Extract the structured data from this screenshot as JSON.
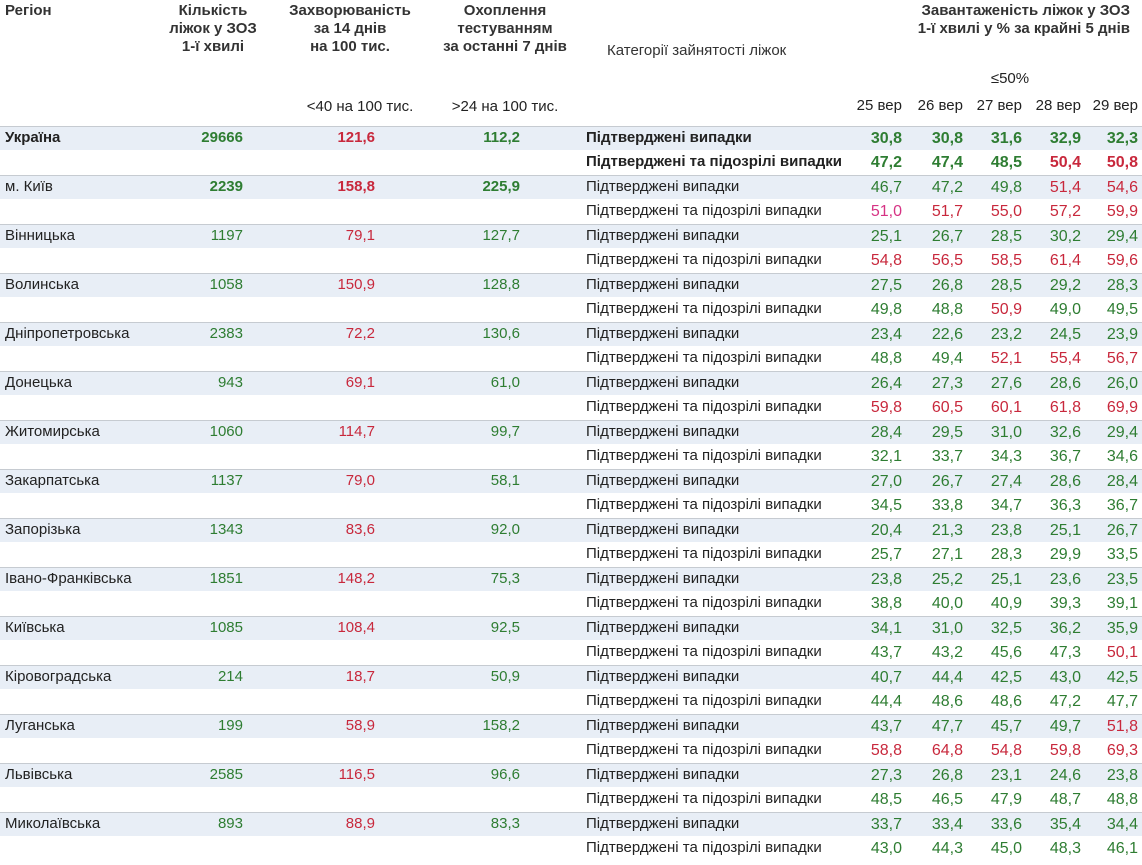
{
  "header": {
    "region": "Регіон",
    "beds": [
      "Кількість",
      "ліжок у ЗОЗ",
      "1-ї хвилі"
    ],
    "incidence": [
      "Захворюваність",
      "за 14 днів",
      "на 100 тис."
    ],
    "testing": [
      "Охоплення",
      "тестуванням",
      "за останні 7 днів"
    ],
    "category": "Категорії зайнятості ліжок",
    "occupancy": [
      "Завантаженість ліжок у ЗОЗ",
      "1-ї хвилі у % за крайні 5 днів"
    ],
    "threshold": "≤50%",
    "incidence_note": "<40 на 100 тис.",
    "testing_note": ">24 на 100 тис.",
    "dates": [
      "25 вер",
      "26 вер",
      "27 вер",
      "28 вер",
      "29 вер"
    ]
  },
  "palette": {
    "g": "#2e7d32",
    "r": "#c8283c",
    "p": "#d63384"
  },
  "column_colors": {
    "beds": "g",
    "incidence": "r",
    "testing": "g"
  },
  "rows": [
    {
      "region": "Україна",
      "emphasis": "all",
      "beds": "29666",
      "incidence": "121,6",
      "testing": "112,2",
      "confirmed": {
        "label": "Підтверджені випадки",
        "values": [
          "30,8",
          "30,8",
          "31,6",
          "32,9",
          "32,3"
        ],
        "colors": [
          "g",
          "g",
          "g",
          "g",
          "g"
        ]
      },
      "suspected": {
        "label": "Підтверджені та підозрілі випадки",
        "values": [
          "47,2",
          "47,4",
          "48,5",
          "50,4",
          "50,8"
        ],
        "colors": [
          "g",
          "g",
          "g",
          "r",
          "r"
        ]
      }
    },
    {
      "region": "м. Київ",
      "emphasis": "numbers",
      "beds": "2239",
      "incidence": "158,8",
      "testing": "225,9",
      "confirmed": {
        "label": "Підтверджені випадки",
        "values": [
          "46,7",
          "47,2",
          "49,8",
          "51,4",
          "54,6"
        ],
        "colors": [
          "g",
          "g",
          "g",
          "r",
          "r"
        ]
      },
      "suspected": {
        "label": "Підтверджені та підозрілі випадки",
        "values": [
          "51,0",
          "51,7",
          "55,0",
          "57,2",
          "59,9"
        ],
        "colors": [
          "p",
          "r",
          "r",
          "r",
          "r"
        ]
      }
    },
    {
      "region": "Вінницька",
      "beds": "1197",
      "incidence": "79,1",
      "testing": "127,7",
      "confirmed": {
        "label": "Підтверджені випадки",
        "values": [
          "25,1",
          "26,7",
          "28,5",
          "30,2",
          "29,4"
        ],
        "colors": [
          "g",
          "g",
          "g",
          "g",
          "g"
        ]
      },
      "suspected": {
        "label": "Підтверджені та підозрілі випадки",
        "values": [
          "54,8",
          "56,5",
          "58,5",
          "61,4",
          "59,6"
        ],
        "colors": [
          "r",
          "r",
          "r",
          "r",
          "r"
        ]
      }
    },
    {
      "region": "Волинська",
      "beds": "1058",
      "incidence": "150,9",
      "testing": "128,8",
      "confirmed": {
        "label": "Підтверджені випадки",
        "values": [
          "27,5",
          "26,8",
          "28,5",
          "29,2",
          "28,3"
        ],
        "colors": [
          "g",
          "g",
          "g",
          "g",
          "g"
        ]
      },
      "suspected": {
        "label": "Підтверджені та підозрілі випадки",
        "values": [
          "49,8",
          "48,8",
          "50,9",
          "49,0",
          "49,5"
        ],
        "colors": [
          "g",
          "g",
          "r",
          "g",
          "g"
        ]
      }
    },
    {
      "region": "Дніпропетровська",
      "beds": "2383",
      "incidence": "72,2",
      "testing": "130,6",
      "confirmed": {
        "label": "Підтверджені випадки",
        "values": [
          "23,4",
          "22,6",
          "23,2",
          "24,5",
          "23,9"
        ],
        "colors": [
          "g",
          "g",
          "g",
          "g",
          "g"
        ]
      },
      "suspected": {
        "label": "Підтверджені та підозрілі випадки",
        "values": [
          "48,8",
          "49,4",
          "52,1",
          "55,4",
          "56,7"
        ],
        "colors": [
          "g",
          "g",
          "r",
          "r",
          "r"
        ]
      }
    },
    {
      "region": "Донецька",
      "beds": "943",
      "incidence": "69,1",
      "testing": "61,0",
      "confirmed": {
        "label": "Підтверджені випадки",
        "values": [
          "26,4",
          "27,3",
          "27,6",
          "28,6",
          "26,0"
        ],
        "colors": [
          "g",
          "g",
          "g",
          "g",
          "g"
        ]
      },
      "suspected": {
        "label": "Підтверджені та підозрілі випадки",
        "values": [
          "59,8",
          "60,5",
          "60,1",
          "61,8",
          "69,9"
        ],
        "colors": [
          "r",
          "r",
          "r",
          "r",
          "r"
        ]
      }
    },
    {
      "region": "Житомирська",
      "beds": "1060",
      "incidence": "114,7",
      "testing": "99,7",
      "confirmed": {
        "label": "Підтверджені випадки",
        "values": [
          "28,4",
          "29,5",
          "31,0",
          "32,6",
          "29,4"
        ],
        "colors": [
          "g",
          "g",
          "g",
          "g",
          "g"
        ]
      },
      "suspected": {
        "label": "Підтверджені та підозрілі випадки",
        "values": [
          "32,1",
          "33,7",
          "34,3",
          "36,7",
          "34,6"
        ],
        "colors": [
          "g",
          "g",
          "g",
          "g",
          "g"
        ]
      }
    },
    {
      "region": "Закарпатська",
      "beds": "1137",
      "incidence": "79,0",
      "testing": "58,1",
      "confirmed": {
        "label": "Підтверджені випадки",
        "values": [
          "27,0",
          "26,7",
          "27,4",
          "28,6",
          "28,4"
        ],
        "colors": [
          "g",
          "g",
          "g",
          "g",
          "g"
        ]
      },
      "suspected": {
        "label": "Підтверджені та підозрілі випадки",
        "values": [
          "34,5",
          "33,8",
          "34,7",
          "36,3",
          "36,7"
        ],
        "colors": [
          "g",
          "g",
          "g",
          "g",
          "g"
        ]
      }
    },
    {
      "region": "Запорізька",
      "beds": "1343",
      "incidence": "83,6",
      "testing": "92,0",
      "confirmed": {
        "label": "Підтверджені випадки",
        "values": [
          "20,4",
          "21,3",
          "23,8",
          "25,1",
          "26,7"
        ],
        "colors": [
          "g",
          "g",
          "g",
          "g",
          "g"
        ]
      },
      "suspected": {
        "label": "Підтверджені та підозрілі випадки",
        "values": [
          "25,7",
          "27,1",
          "28,3",
          "29,9",
          "33,5"
        ],
        "colors": [
          "g",
          "g",
          "g",
          "g",
          "g"
        ]
      }
    },
    {
      "region": "Івано-Франківська",
      "beds": "1851",
      "incidence": "148,2",
      "testing": "75,3",
      "confirmed": {
        "label": "Підтверджені випадки",
        "values": [
          "23,8",
          "25,2",
          "25,1",
          "23,6",
          "23,5"
        ],
        "colors": [
          "g",
          "g",
          "g",
          "g",
          "g"
        ]
      },
      "suspected": {
        "label": "Підтверджені та підозрілі випадки",
        "values": [
          "38,8",
          "40,0",
          "40,9",
          "39,3",
          "39,1"
        ],
        "colors": [
          "g",
          "g",
          "g",
          "g",
          "g"
        ]
      }
    },
    {
      "region": "Київська",
      "beds": "1085",
      "incidence": "108,4",
      "testing": "92,5",
      "confirmed": {
        "label": "Підтверджені випадки",
        "values": [
          "34,1",
          "31,0",
          "32,5",
          "36,2",
          "35,9"
        ],
        "colors": [
          "g",
          "g",
          "g",
          "g",
          "g"
        ]
      },
      "suspected": {
        "label": "Підтверджені та підозрілі випадки",
        "values": [
          "43,7",
          "43,2",
          "45,6",
          "47,3",
          "50,1"
        ],
        "colors": [
          "g",
          "g",
          "g",
          "g",
          "r"
        ]
      }
    },
    {
      "region": "Кіровоградська",
      "beds": "214",
      "incidence": "18,7",
      "testing": "50,9",
      "confirmed": {
        "label": "Підтверджені випадки",
        "values": [
          "40,7",
          "44,4",
          "42,5",
          "43,0",
          "42,5"
        ],
        "colors": [
          "g",
          "g",
          "g",
          "g",
          "g"
        ]
      },
      "suspected": {
        "label": "Підтверджені та підозрілі випадки",
        "values": [
          "44,4",
          "48,6",
          "48,6",
          "47,2",
          "47,7"
        ],
        "colors": [
          "g",
          "g",
          "g",
          "g",
          "g"
        ]
      }
    },
    {
      "region": "Луганська",
      "beds": "199",
      "incidence": "58,9",
      "testing": "158,2",
      "confirmed": {
        "label": "Підтверджені випадки",
        "values": [
          "43,7",
          "47,7",
          "45,7",
          "49,7",
          "51,8"
        ],
        "colors": [
          "g",
          "g",
          "g",
          "g",
          "r"
        ]
      },
      "suspected": {
        "label": "Підтверджені та підозрілі випадки",
        "values": [
          "58,8",
          "64,8",
          "54,8",
          "59,8",
          "69,3"
        ],
        "colors": [
          "r",
          "r",
          "r",
          "r",
          "r"
        ]
      }
    },
    {
      "region": "Львівська",
      "beds": "2585",
      "incidence": "116,5",
      "testing": "96,6",
      "confirmed": {
        "label": "Підтверджені випадки",
        "values": [
          "27,3",
          "26,8",
          "23,1",
          "24,6",
          "23,8"
        ],
        "colors": [
          "g",
          "g",
          "g",
          "g",
          "g"
        ]
      },
      "suspected": {
        "label": "Підтверджені та підозрілі випадки",
        "values": [
          "48,5",
          "46,5",
          "47,9",
          "48,7",
          "48,8"
        ],
        "colors": [
          "g",
          "g",
          "g",
          "g",
          "g"
        ]
      }
    },
    {
      "region": "Миколаївська",
      "beds": "893",
      "incidence": "88,9",
      "testing": "83,3",
      "confirmed": {
        "label": "Підтверджені випадки",
        "values": [
          "33,7",
          "33,4",
          "33,6",
          "35,4",
          "34,4"
        ],
        "colors": [
          "g",
          "g",
          "g",
          "g",
          "g"
        ]
      },
      "suspected": {
        "label": "Підтверджені та підозрілі випадки",
        "values": [
          "43,0",
          "44,3",
          "45,0",
          "48,3",
          "46,1"
        ],
        "colors": [
          "g",
          "g",
          "g",
          "g",
          "g"
        ]
      }
    }
  ]
}
